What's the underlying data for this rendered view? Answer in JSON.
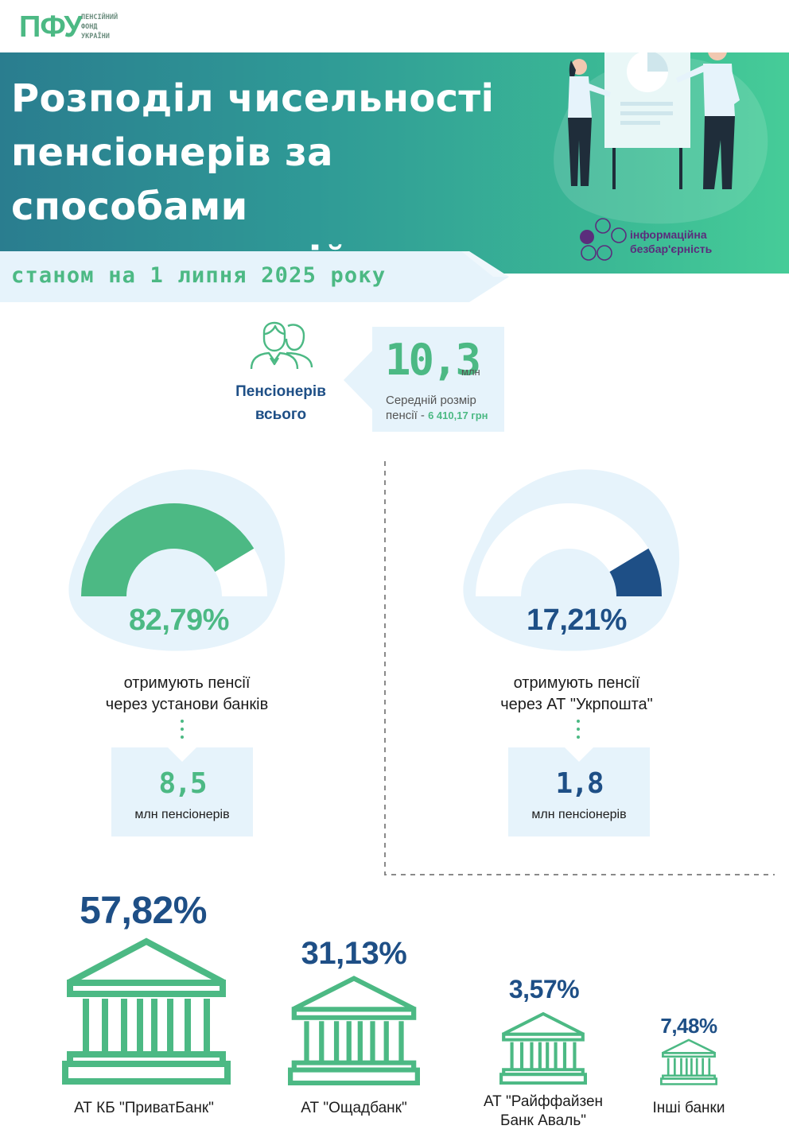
{
  "logo": {
    "mark": "ПФУ",
    "line1": "ПЕНСІЙНИЙ",
    "line2": "ФОНД",
    "line3": "УКРАЇНИ"
  },
  "header": {
    "title_line1": "Розподіл чисельності",
    "title_line2": "пенсіонерів за способами",
    "title_line3": "виплати пенсій",
    "date": "станом на 1 липня 2025 року",
    "badge_line1": "інформаційна",
    "badge_line2": "безбар'єрність"
  },
  "colors": {
    "green": "#4cb984",
    "navy": "#1e4f86",
    "light_blue": "#e6f3fb",
    "purple": "#5b2d7c"
  },
  "total": {
    "value": "10,3",
    "unit": "млн",
    "label_line1": "Пенсіонерів",
    "label_line2": "всього",
    "avg_line1": "Середній розмір",
    "avg_prefix": "пенсії -",
    "avg_value": "6 410,17 грн"
  },
  "chart_data": [
    {
      "type": "pie",
      "categories": [
        "отримують пенсії через установи банків",
        "отримують пенсії через АТ \"Укрпошта\""
      ],
      "values": [
        82.79,
        17.21
      ],
      "labels": [
        "82,79%",
        "17,21%"
      ],
      "counts": [
        "8,5",
        "1,8"
      ],
      "count_unit": "млн пенсіонерів"
    },
    {
      "type": "bar",
      "categories": [
        "АТ КБ \"ПриватБанк\"",
        "АТ \"Ощадбанк\"",
        "АТ \"Райффайзен Банк Аваль\"",
        "Інші банки"
      ],
      "values": [
        57.82,
        31.13,
        3.57,
        7.48
      ],
      "labels": [
        "57,82%",
        "31,13%",
        "3,57%",
        "7,48%"
      ]
    }
  ],
  "banks_split": {
    "caption_line1": "отримують пенсії",
    "caption_line2": "через установи банків",
    "percent": "82,79%",
    "count": "8,5",
    "count_label": "млн пенсіонерів"
  },
  "post_split": {
    "caption_line1": "отримують пенсії",
    "caption_line2": "через АТ \"Укрпошта\"",
    "percent": "17,21%",
    "count": "1,8",
    "count_label": "млн пенсіонерів"
  },
  "banks": [
    {
      "name_line1": "АТ КБ \"ПриватБанк\"",
      "name_line2": "",
      "percent": "57,82%"
    },
    {
      "name_line1": "АТ \"Ощадбанк\"",
      "name_line2": "",
      "percent": "31,13%"
    },
    {
      "name_line1": "АТ \"Райффайзен",
      "name_line2": "Банк Аваль\"",
      "percent": "3,57%"
    },
    {
      "name_line1": "Інші банки",
      "name_line2": "",
      "percent": "7,48%"
    }
  ]
}
